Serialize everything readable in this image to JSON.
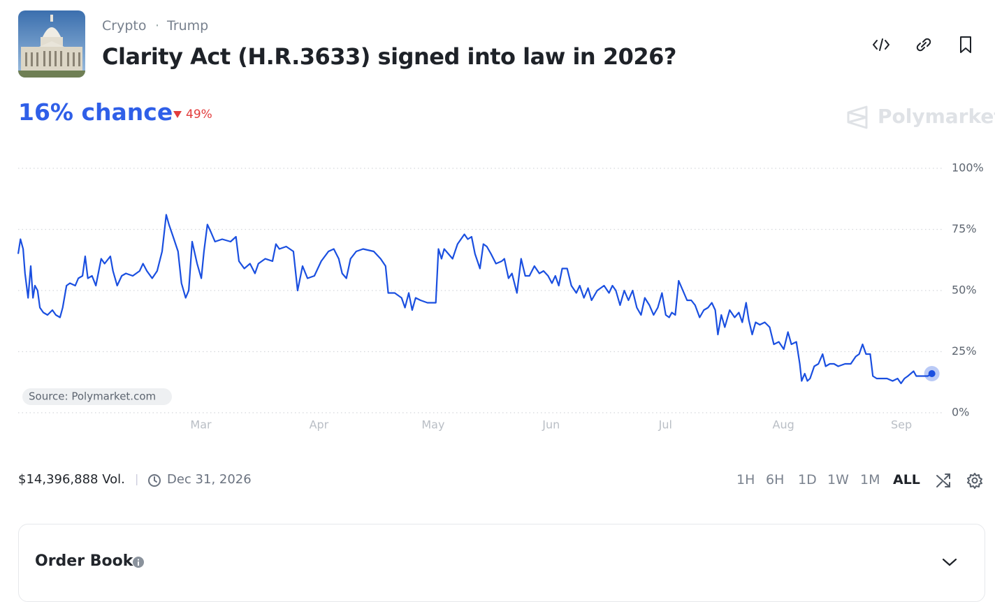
{
  "header": {
    "breadcrumbs": [
      "Crypto",
      "Trump"
    ],
    "title": "Clarity Act (H.R.3633) signed into law in 2026?"
  },
  "chance": "16% chance",
  "change": "49%",
  "brand": "Polymarket",
  "chart_data": {
    "type": "line",
    "source": "Source: Polymarket.com",
    "x": [
      11,
      11.6,
      12.3,
      12.8,
      13.6,
      14.3,
      14.9,
      15.4,
      16.1,
      16.7,
      17.6,
      18.7,
      20.0,
      20.9,
      22.0,
      22.7,
      23.7,
      24.6,
      26.0,
      26.8,
      27.9,
      28.6,
      29.3,
      30.4,
      31.4,
      32.8,
      33.7,
      35.2,
      35.9,
      37.0,
      38.2,
      39.3,
      41.1,
      42.9,
      43.8,
      44.8,
      46.2,
      47.5,
      48.8,
      49.9,
      50.6,
      51.7,
      53.0,
      53.9,
      55.0,
      55.8,
      56.7,
      58.0,
      59.1,
      59.8,
      60.7,
      61.6,
      62.7,
      64.6,
      66.8,
      68.2,
      69.0,
      70.4,
      71.9,
      73.2,
      74.1,
      75.9,
      77.8,
      78.7,
      79.6,
      81.4,
      83.3,
      84.4,
      85.7,
      87.0,
      88.8,
      90.6,
      92.5,
      93.9,
      95.2,
      96.1,
      97.2,
      98.3,
      99.8,
      101.6,
      104.4,
      106.2,
      107.5,
      108.2,
      109.9,
      111.7,
      112.6,
      113.6,
      114.5,
      115.4,
      116.7,
      118.5,
      120.0,
      120.7,
      121.4,
      122.2,
      122.9,
      124.0,
      125.1,
      126.4,
      127.3,
      128.2,
      129.1,
      130.1,
      131.0,
      132.3,
      133.2,
      134.1,
      135.2,
      136.5,
      138.0,
      138.7,
      139.8,
      140.7,
      142.0,
      143.1,
      144.2,
      145.3,
      146.6,
      147.9,
      149.0,
      150.2,
      151.2,
      152.1,
      153.0,
      153.9,
      155.2,
      156.3,
      157.6,
      158.5,
      159.6,
      160.7,
      161.6,
      163.1,
      164.9,
      166.2,
      167.1,
      168.0,
      169.1,
      170.2,
      171.3,
      172.4,
      173.5,
      174.6,
      175.6,
      176.8,
      177.9,
      179.0,
      180.1,
      181.1,
      182.0,
      182.7,
      183.6,
      184.5,
      185.6,
      186.7,
      187.8,
      188.8,
      190.0,
      191.1,
      192.2,
      193.2,
      194.1,
      194.8,
      195.7,
      196.6,
      197.9,
      199.2,
      200.3,
      201.2,
      202.2,
      202.9,
      203.8,
      204.7,
      205.8,
      207.1,
      208.4,
      209.5,
      210.8,
      212.1,
      213.2,
      214.1,
      215.4,
      216.3,
      216.8,
      217.6,
      218.3,
      219.0,
      220.1,
      221.2,
      222.3,
      223.1,
      224.2,
      225.3,
      226.4,
      228.2,
      229.7,
      231.0,
      231.9,
      232.8,
      233.7,
      234.8,
      235.5,
      236.5,
      237.7,
      239.2,
      240.7,
      242.0,
      242.9,
      243.8,
      244.7,
      246.2,
      246.9,
      248.4,
      249.9,
      251.0
    ],
    "series": [
      {
        "color": "#1a4fe0",
        "values": [
          65,
          71,
          67,
          57,
          47,
          60,
          47,
          52,
          50,
          43,
          41,
          40,
          42,
          40,
          39,
          43,
          52,
          53,
          52,
          55,
          56,
          64,
          55,
          56,
          52,
          63,
          61,
          64,
          58,
          52,
          56,
          57,
          56,
          58,
          61,
          58,
          55,
          58,
          66,
          81,
          77,
          72,
          66,
          53,
          47,
          50,
          70,
          61,
          55,
          66,
          77,
          74,
          70,
          71,
          70,
          72,
          62,
          59,
          61,
          57,
          61,
          63,
          62,
          69,
          67,
          68,
          66,
          50,
          60,
          55,
          56,
          62,
          66,
          67,
          63,
          57,
          55,
          63,
          66,
          67,
          66,
          63,
          60,
          49,
          49,
          47,
          43,
          49,
          42,
          47,
          46,
          45,
          45,
          45,
          67,
          63,
          67,
          65,
          63,
          69,
          71,
          73,
          71,
          72,
          65,
          59,
          69,
          68,
          65,
          61,
          62,
          63,
          55,
          57,
          49,
          63,
          56,
          56,
          60,
          57,
          58,
          56,
          53,
          56,
          52,
          59,
          59,
          52,
          49,
          52,
          47,
          51,
          46,
          50,
          52,
          49,
          52,
          50,
          44,
          50,
          46,
          50,
          43,
          40,
          47,
          44,
          40,
          43,
          49,
          40,
          39,
          41,
          40,
          54,
          50,
          46,
          46,
          44,
          39,
          42,
          43,
          45,
          42,
          32,
          40,
          35,
          42,
          39,
          41,
          37,
          45,
          38,
          32,
          37,
          36,
          37,
          35,
          28,
          29,
          26,
          33,
          28,
          29,
          20,
          13,
          16,
          13,
          14,
          19,
          20,
          24,
          19,
          20,
          20,
          19,
          20,
          20,
          23,
          24,
          28,
          24,
          24,
          15,
          14,
          14,
          14,
          13,
          14,
          12,
          14,
          15,
          17,
          15,
          15,
          15,
          16
        ]
      }
    ],
    "xlim": [
      11,
      254
    ],
    "xticks": [
      {
        "value": 59,
        "label": "Mar"
      },
      {
        "value": 90,
        "label": "Apr"
      },
      {
        "value": 120,
        "label": "May"
      },
      {
        "value": 151,
        "label": "Jun"
      },
      {
        "value": 181,
        "label": "Jul"
      },
      {
        "value": 212,
        "label": "Aug"
      },
      {
        "value": 243,
        "label": "Sep"
      }
    ],
    "ylim": [
      0,
      100
    ],
    "yticks": [
      {
        "value": 0,
        "label": "0%"
      },
      {
        "value": 25,
        "label": "25%"
      },
      {
        "value": 50,
        "label": "50%"
      },
      {
        "value": 75,
        "label": "75%"
      },
      {
        "value": 100,
        "label": "100%"
      }
    ],
    "grid": true
  },
  "footer": {
    "volume": "$14,396,888 Vol.",
    "end_date": "Dec 31, 2026",
    "ranges": [
      "1H",
      "6H",
      "1D",
      "1W",
      "1M",
      "ALL"
    ]
  },
  "order_book": {
    "title": "Order Book"
  }
}
